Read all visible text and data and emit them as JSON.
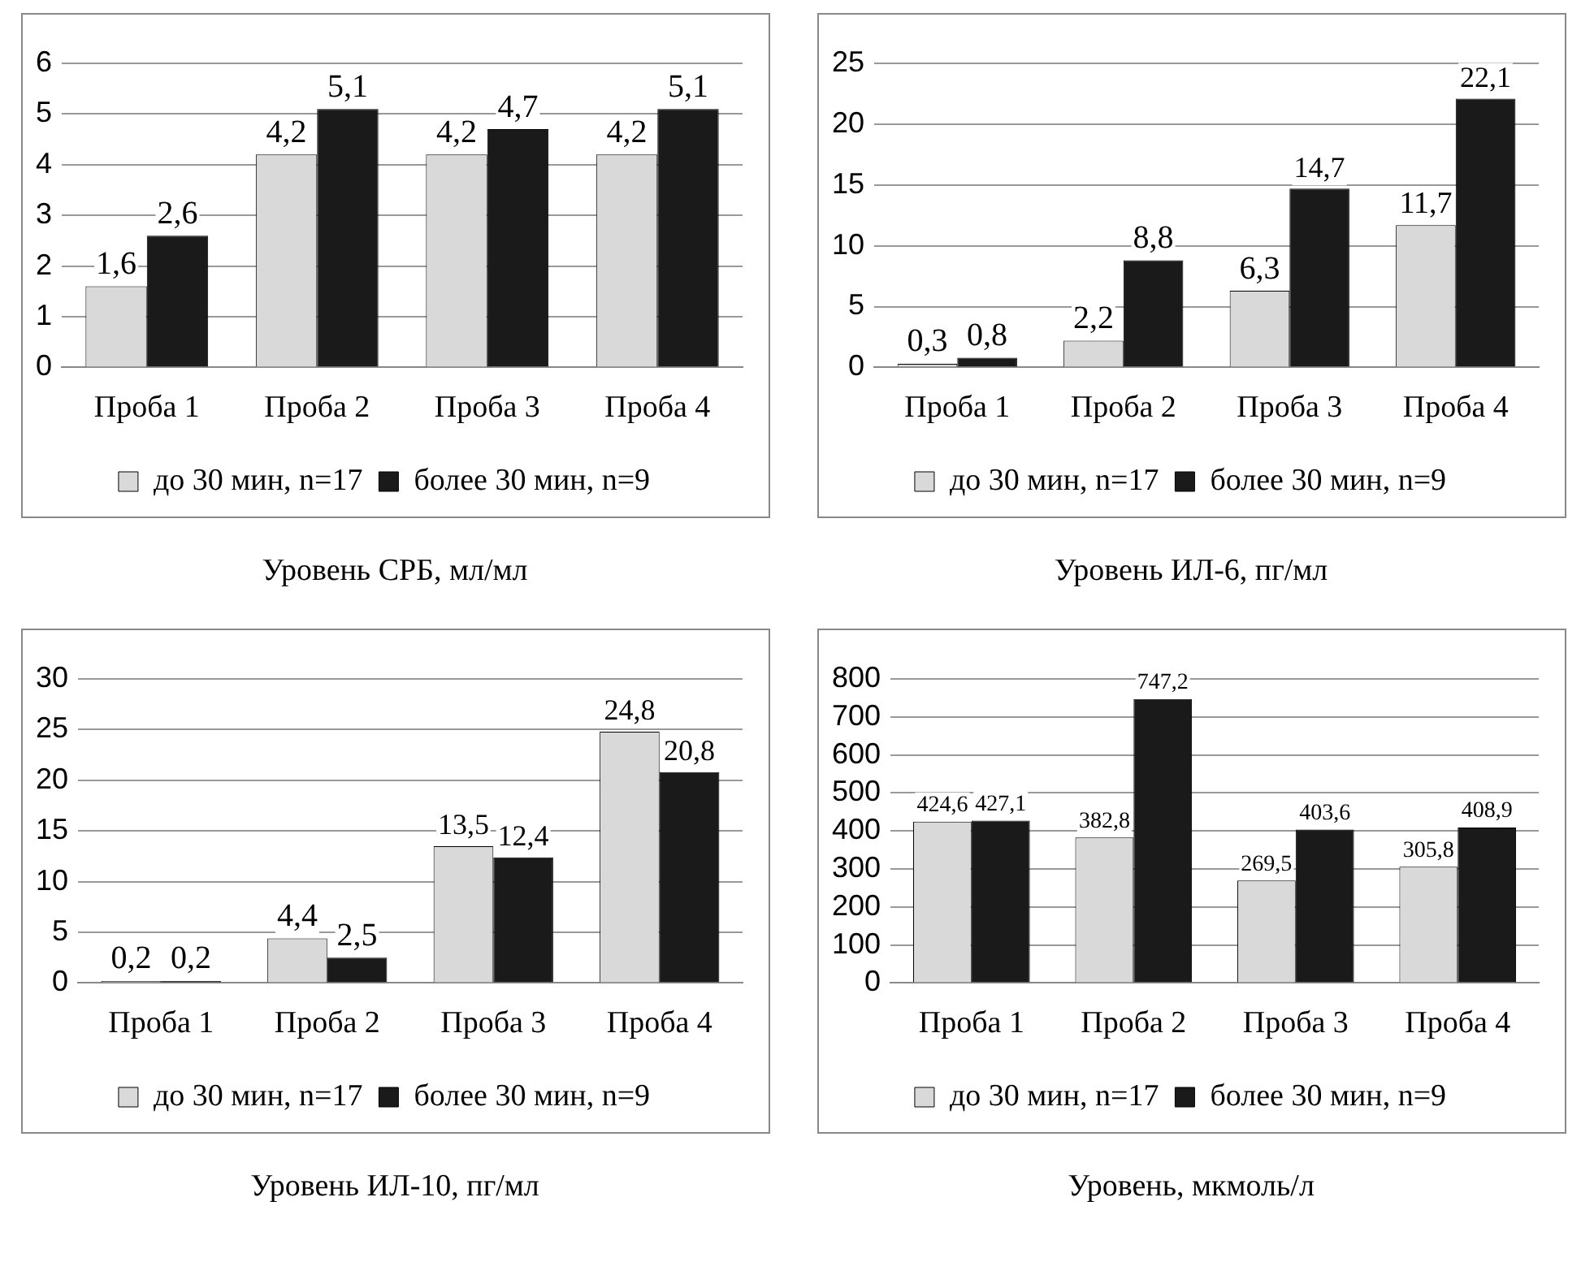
{
  "chart_data": [
    {
      "type": "bar",
      "title": "Уровень СРБ, мл/мл",
      "categories": [
        "Проба 1",
        "Проба 2",
        "Проба 3",
        "Проба 4"
      ],
      "series": [
        {
          "name": "до 30 мин, n=17",
          "color": "#d9d9d9",
          "values": [
            1.6,
            4.2,
            4.2,
            4.2
          ],
          "value_labels": [
            "1,6",
            "4,2",
            "4,2",
            "4,2"
          ]
        },
        {
          "name": "более 30 мин, n=9",
          "color": "#1a1a1a",
          "values": [
            2.6,
            5.1,
            4.7,
            5.1
          ],
          "value_labels": [
            "2,6",
            "5,1",
            "4,7",
            "5,1"
          ]
        }
      ],
      "ylim": [
        0,
        6
      ],
      "yticks": [
        0,
        1,
        2,
        3,
        4,
        5,
        6
      ],
      "grid": "y",
      "legend": "bottom"
    },
    {
      "type": "bar",
      "title": "Уровень ИЛ-6, пг/мл",
      "categories": [
        "Проба 1",
        "Проба 2",
        "Проба 3",
        "Проба 4"
      ],
      "series": [
        {
          "name": "до 30 мин, n=17",
          "color": "#d9d9d9",
          "values": [
            0.3,
            2.2,
            6.3,
            11.7
          ],
          "value_labels": [
            "0,3",
            "2,2",
            "6,3",
            "11,7"
          ]
        },
        {
          "name": "более 30 мин, n=9",
          "color": "#1a1a1a",
          "values": [
            0.8,
            8.8,
            14.7,
            22.1
          ],
          "value_labels": [
            "0,8",
            "8,8",
            "14,7",
            "22,1"
          ]
        }
      ],
      "ylim": [
        0,
        25
      ],
      "yticks": [
        0,
        5,
        10,
        15,
        20,
        25
      ],
      "grid": "y",
      "legend": "bottom"
    },
    {
      "type": "bar",
      "title": "Уровень ИЛ-10, пг/мл",
      "categories": [
        "Проба 1",
        "Проба 2",
        "Проба 3",
        "Проба 4"
      ],
      "series": [
        {
          "name": "до 30 мин, n=17",
          "color": "#d9d9d9",
          "values": [
            0.2,
            4.4,
            13.5,
            24.8
          ],
          "value_labels": [
            "0,2",
            "4,4",
            "13,5",
            "24,8"
          ]
        },
        {
          "name": "более 30 мин, n=9",
          "color": "#1a1a1a",
          "values": [
            0.2,
            2.5,
            12.4,
            20.8
          ],
          "value_labels": [
            "0,2",
            "2,5",
            "12,4",
            "20,8"
          ]
        }
      ],
      "ylim": [
        0,
        30
      ],
      "yticks": [
        0,
        5,
        10,
        15,
        20,
        25,
        30
      ],
      "grid": "y",
      "legend": "bottom"
    },
    {
      "type": "bar",
      "title": "Уровень, мкмоль/л",
      "categories": [
        "Проба 1",
        "Проба 2",
        "Проба 3",
        "Проба 4"
      ],
      "series": [
        {
          "name": "до 30 мин, n=17",
          "color": "#d9d9d9",
          "values": [
            424.6,
            382.8,
            269.5,
            305.8
          ],
          "value_labels": [
            "424,6",
            "382,8",
            "269,5",
            "305,8"
          ]
        },
        {
          "name": "более 30 мин, n=9",
          "color": "#1a1a1a",
          "values": [
            427.1,
            747.2,
            403.6,
            408.9
          ],
          "value_labels": [
            "427,1",
            "747,2",
            "403,6",
            "408,9"
          ]
        }
      ],
      "ylim": [
        0,
        800
      ],
      "yticks": [
        0,
        100,
        200,
        300,
        400,
        500,
        600,
        700,
        800
      ],
      "grid": "y",
      "legend": "bottom"
    }
  ]
}
